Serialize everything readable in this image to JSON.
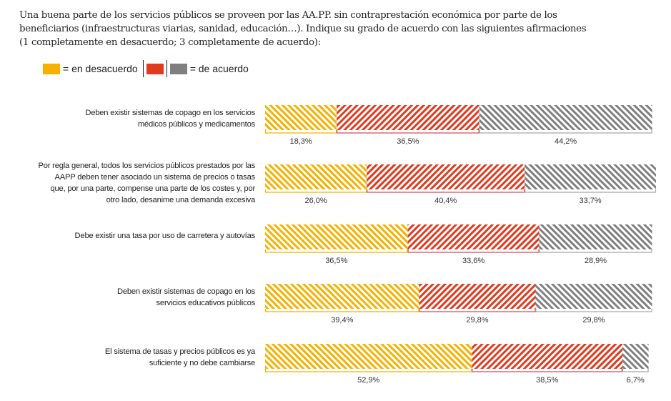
{
  "question": {
    "lines": [
      "Una buena parte de los servicios públicos se proveen por las AA.PP. sin contraprestación económica por parte de los",
      "beneficiarios (infraestructuras viarias, sanidad, educación…). Indique su grado de acuerdo con las siguientes afirmaciones",
      "(1 completamente en desacuerdo; 3 completamente de acuerdo):"
    ]
  },
  "legend": {
    "disagree_label": "= en desacuerdo",
    "agree_label": "= de acuerdo"
  },
  "colors": {
    "disagree": "#F5B000",
    "neutral": "#E03A1E",
    "agree": "#7F7F7F",
    "neutral_bracket": "#D64A5E",
    "agree_bracket": "#A8A8A8"
  },
  "chart_data": {
    "type": "bar",
    "orientation": "horizontal",
    "stacked": true,
    "percent": true,
    "title": "Una buena parte de los servicios públicos se proveen por las AA.PP. sin contraprestación económica por parte de los beneficiarios (infraestructuras viarias, sanidad, educación…). Indique su grado de acuerdo con las siguientes afirmaciones (1 completamente en desacuerdo; 3 completamente de acuerdo):",
    "xlim": [
      0,
      100
    ],
    "legend_position": "top-left",
    "categories": [
      [
        "Deben existir sistemas de copago en los servicios",
        "médicos públicos y medicamentos"
      ],
      [
        "Por regla general, todos los servicios públicos prestados por las",
        "AAPP deben tener asociado un sistema de precios o tasas",
        "que, por una parte, compense una parte de los costes y, por",
        "otro lado, desanime una demanda excesiva"
      ],
      [
        "Debe existir una tasa por uso de carretera y autovías"
      ],
      [
        "Deben existir sistemas de copago en los",
        "servicios educativos públicos"
      ],
      [
        "El sistema de tasas y precios públicos es ya",
        "suficiente y no debe cambiarse"
      ]
    ],
    "series": [
      {
        "name": "1 (en desacuerdo)",
        "values": [
          18.3,
          26.0,
          36.5,
          39.4,
          52.9
        ],
        "labels": [
          "18,3%",
          "26,0%",
          "36,5%",
          "39,4%",
          "52,9%"
        ]
      },
      {
        "name": "2",
        "values": [
          36.5,
          40.4,
          33.6,
          29.8,
          38.5
        ],
        "labels": [
          "36,5%",
          "40,4%",
          "33,6%",
          "29,8%",
          "38,5%"
        ]
      },
      {
        "name": "3 (de acuerdo)",
        "values": [
          44.2,
          33.7,
          28.9,
          29.8,
          6.7
        ],
        "labels": [
          "44,2%",
          "33,7%",
          "28,9%",
          "29,8%",
          "6,7%"
        ]
      }
    ]
  }
}
